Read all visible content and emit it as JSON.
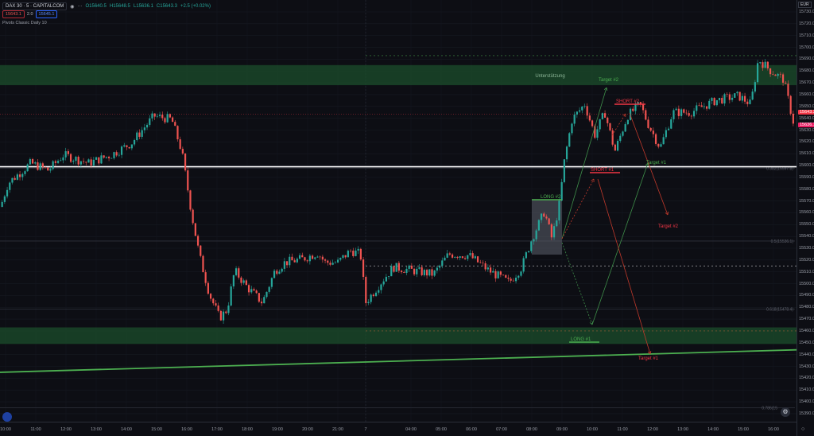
{
  "header": {
    "symbol": "DAX 30 · 5 · CAPITALCOM",
    "open": "O15640.5",
    "high": "H15648.5",
    "low": "L15636.1",
    "close": "C15643.3",
    "change": "+2.5 (+0.02%)",
    "sell": "15643.1",
    "spread": "2.0",
    "buy": "15645.1",
    "indicator": "Pivots Classic Daily 10",
    "currency": "EUR"
  },
  "price_tags": {
    "last": "15643.3",
    "low": "15636.1"
  },
  "colors": {
    "up": "#26a69a",
    "down": "#ef5350",
    "zone": "#1b4d2b",
    "trend": "#4caf50",
    "background": "#0d0e14"
  },
  "chart_data": {
    "type": "candlestick",
    "ylim": [
      15385,
      15735
    ],
    "price_ticks": [
      15730,
      15720,
      15710,
      15700,
      15690,
      15680,
      15670,
      15660,
      15650,
      15640,
      15630,
      15620,
      15610,
      15600,
      15590,
      15580,
      15570,
      15560,
      15550,
      15540,
      15530,
      15520,
      15510,
      15500,
      15490,
      15480,
      15470,
      15460,
      15450,
      15440,
      15430,
      15420,
      15410,
      15400,
      15390
    ],
    "time_ticks": [
      "10:00",
      "11:00",
      "12:00",
      "13:00",
      "14:00",
      "15:00",
      "16:00",
      "17:00",
      "18:00",
      "19:00",
      "20:00",
      "21:00",
      "7",
      "04:00",
      "05:00",
      "06:00",
      "07:00",
      "08:00",
      "09:00",
      "10:00",
      "11:00",
      "12:00",
      "13:00",
      "14:00",
      "15:00",
      "16:00"
    ],
    "price_path": [
      [
        "1",
        "09:50",
        15565
      ],
      [
        "1",
        "10:05",
        15585
      ],
      [
        "1",
        "10:50",
        15602
      ],
      [
        "1",
        "11:25",
        15596
      ],
      [
        "1",
        "11:55",
        15609
      ],
      [
        "1",
        "12:45",
        15602
      ],
      [
        "1",
        "13:30",
        15609
      ],
      [
        "1",
        "14:10",
        15619
      ],
      [
        "1",
        "14:35",
        15632
      ],
      [
        "1",
        "14:55",
        15642
      ],
      [
        "1",
        "15:30",
        15639
      ],
      [
        "1",
        "15:50",
        15612
      ],
      [
        "1",
        "16:10",
        15558
      ],
      [
        "1",
        "16:25",
        15524
      ],
      [
        "1",
        "16:45",
        15491
      ],
      [
        "1",
        "17:05",
        15471
      ],
      [
        "1",
        "17:20",
        15478
      ],
      [
        "1",
        "17:35",
        15511
      ],
      [
        "1",
        "18:00",
        15497
      ],
      [
        "1",
        "18:30",
        15484
      ],
      [
        "1",
        "18:55",
        15511
      ],
      [
        "1",
        "19:15",
        15518
      ],
      [
        "1",
        "19:50",
        15521
      ],
      [
        "1",
        "20:20",
        15526
      ],
      [
        "1",
        "20:35",
        15518
      ],
      [
        "1",
        "21:00",
        15518
      ],
      [
        "1",
        "21:25",
        15528
      ],
      [
        "1",
        "21:45",
        15525
      ],
      [
        "7",
        "02:30",
        15484
      ],
      [
        "7",
        "03:00",
        15501
      ],
      [
        "7",
        "03:25",
        15514
      ],
      [
        "7",
        "04:05",
        15511
      ],
      [
        "7",
        "04:45",
        15508
      ],
      [
        "7",
        "05:15",
        15525
      ],
      [
        "7",
        "05:55",
        15524
      ],
      [
        "7",
        "06:35",
        15511
      ],
      [
        "7",
        "07:15",
        15501
      ],
      [
        "7",
        "07:40",
        15514
      ],
      [
        "7",
        "08:00",
        15538
      ],
      [
        "7",
        "08:25",
        15561
      ],
      [
        "7",
        "08:40",
        15538
      ],
      [
        "7",
        "08:55",
        15568
      ],
      [
        "7",
        "09:05",
        15605
      ],
      [
        "7",
        "09:20",
        15639
      ],
      [
        "7",
        "09:45",
        15652
      ],
      [
        "7",
        "10:05",
        15626
      ],
      [
        "7",
        "10:25",
        15645
      ],
      [
        "7",
        "10:45",
        15612
      ],
      [
        "7",
        "11:10",
        15642
      ],
      [
        "7",
        "11:35",
        15652
      ],
      [
        "7",
        "11:50",
        15636
      ],
      [
        "7",
        "12:15",
        15615
      ],
      [
        "7",
        "12:40",
        15645
      ],
      [
        "7",
        "13:15",
        15645
      ],
      [
        "7",
        "14:05",
        15655
      ],
      [
        "7",
        "14:50",
        15659
      ],
      [
        "7",
        "15:15",
        15652
      ],
      [
        "7",
        "15:30",
        15690
      ],
      [
        "7",
        "15:55",
        15680
      ],
      [
        "7",
        "16:20",
        15673
      ],
      [
        "7",
        "16:40",
        15636
      ]
    ],
    "zones": [
      {
        "label": "Unterstützung",
        "from": 15668,
        "to": 15685
      },
      {
        "label": "",
        "from": 15449,
        "to": 15463
      }
    ],
    "horizontal_line": 15599,
    "trend_line": {
      "start": 15425,
      "end": 15444
    },
    "dashed_levels": [
      15693,
      15515,
      15460
    ],
    "fib_levels": [
      {
        "label": "0.382(15597.8)",
        "price": 15597.8
      },
      {
        "label": "0.5(15536.1)",
        "price": 15536.1
      },
      {
        "label": "0.618(15478.4)",
        "price": 15478.4
      },
      {
        "label": "0.786(15",
        "price": 15395
      }
    ],
    "trades": {
      "long2": "LONG #2",
      "long1": "LONG #1",
      "short1": "SHORT #1",
      "short2": "SHORT #2",
      "target2_green": "Target #2",
      "target1_green": "Target #1",
      "target2_red": "Target #2",
      "target1_red": "Target #1"
    }
  }
}
